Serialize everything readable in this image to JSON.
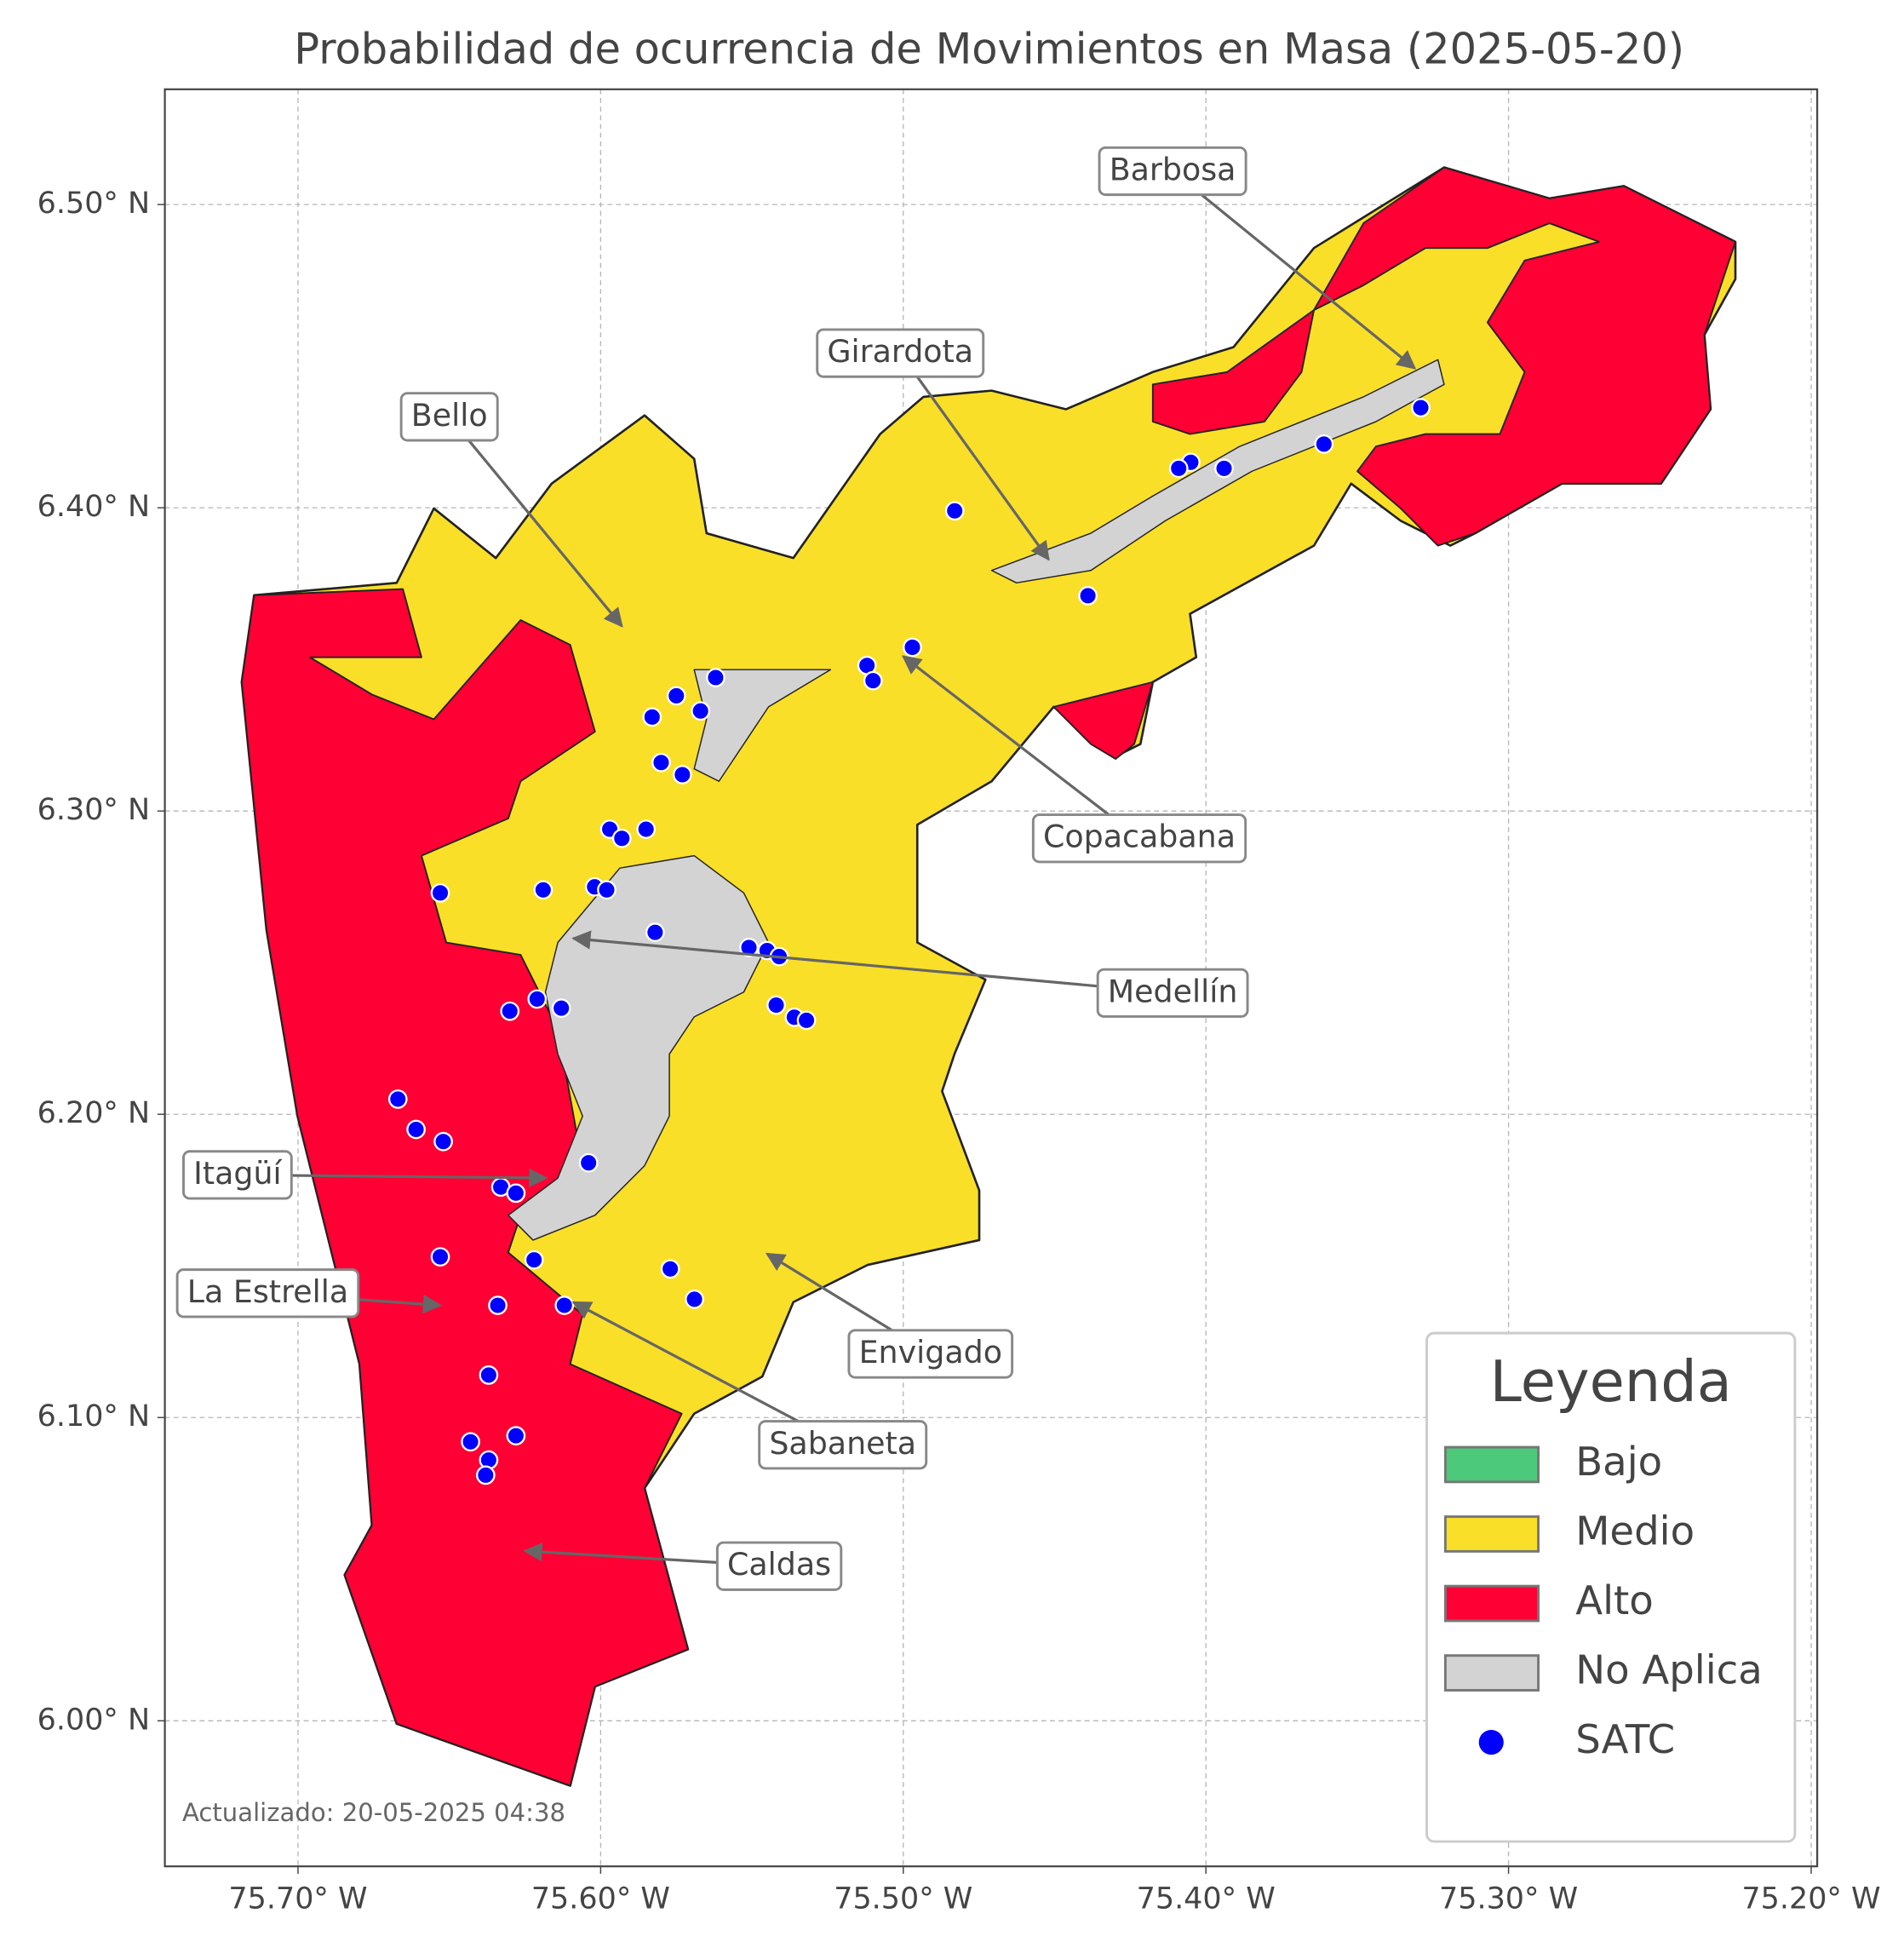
{
  "chart_data": {
    "type": "map",
    "title": "Probabilidad de ocurrencia de Movimientos en Masa (2025-05-20)",
    "note": "Actualizado: 20-05-2025 04:38",
    "xlim": [
      -75.744,
      -75.198
    ],
    "ylim": [
      5.952,
      6.538
    ],
    "xticks": [
      {
        "value": -75.7,
        "label": "75.70° W"
      },
      {
        "value": -75.6,
        "label": "75.60° W"
      },
      {
        "value": -75.5,
        "label": "75.50° W"
      },
      {
        "value": -75.4,
        "label": "75.40° W"
      },
      {
        "value": -75.3,
        "label": "75.30° W"
      },
      {
        "value": -75.2,
        "label": "75.20° W"
      }
    ],
    "yticks": [
      {
        "value": 6.0,
        "label": "6.00° N"
      },
      {
        "value": 6.1,
        "label": "6.10° N"
      },
      {
        "value": 6.2,
        "label": "6.20° N"
      },
      {
        "value": 6.3,
        "label": "6.30° N"
      },
      {
        "value": 6.4,
        "label": "6.40° N"
      },
      {
        "value": 6.5,
        "label": "6.50° N"
      }
    ],
    "grid": true,
    "legend": {
      "title": "Leyenda",
      "loc": "lower right",
      "items": [
        {
          "name": "Bajo",
          "color": "#4cc97a"
        },
        {
          "name": "Medio",
          "color": "#f9df28"
        },
        {
          "name": "Alto",
          "color": "#fe0034"
        },
        {
          "name": "No Aplica",
          "color": "#d3d3d3"
        }
      ]
    },
    "series": [
      {
        "name": "SATC",
        "color": "#0000ff",
        "x": [
          -75.329,
          -75.361,
          -75.394,
          -75.405,
          -75.409,
          -75.483,
          -75.439,
          -75.497,
          -75.512,
          -75.51,
          -75.562,
          -75.575,
          -75.567,
          -75.583,
          -75.58,
          -75.573,
          -75.597,
          -75.593,
          -75.585,
          -75.619,
          -75.602,
          -75.598,
          -75.653,
          -75.582,
          -75.551,
          -75.545,
          -75.541,
          -75.542,
          -75.536,
          -75.532,
          -75.621,
          -75.613,
          -75.63,
          -75.667,
          -75.661,
          -75.652,
          -75.604,
          -75.633,
          -75.628,
          -75.622,
          -75.653,
          -75.577,
          -75.569,
          -75.612,
          -75.634,
          -75.637,
          -75.643,
          -75.628,
          -75.637,
          -75.638
        ],
        "y": [
          6.433,
          6.421,
          6.413,
          6.415,
          6.413,
          6.399,
          6.371,
          6.354,
          6.348,
          6.343,
          6.344,
          6.338,
          6.333,
          6.331,
          6.316,
          6.312,
          6.294,
          6.291,
          6.294,
          6.274,
          6.275,
          6.274,
          6.273,
          6.26,
          6.255,
          6.254,
          6.252,
          6.236,
          6.232,
          6.231,
          6.238,
          6.235,
          6.234,
          6.205,
          6.195,
          6.191,
          6.184,
          6.176,
          6.174,
          6.152,
          6.153,
          6.149,
          6.139,
          6.137,
          6.137,
          6.114,
          6.092,
          6.094,
          6.086,
          6.081
        ]
      }
    ],
    "annotations": [
      {
        "text": "Barbosa",
        "xy": [
          -75.331,
          6.446
        ],
        "xytext": [
          -75.411,
          6.511
        ]
      },
      {
        "text": "Girardota",
        "xy": [
          -75.452,
          6.383
        ],
        "xytext": [
          -75.501,
          6.451
        ]
      },
      {
        "text": "Bello",
        "xy": [
          -75.593,
          6.361
        ],
        "xytext": [
          -75.65,
          6.43
        ]
      },
      {
        "text": "Copacabana",
        "xy": [
          -75.5,
          6.351
        ],
        "xytext": [
          -75.422,
          6.291
        ]
      },
      {
        "text": "Medellín",
        "xy": [
          -75.609,
          6.258
        ],
        "xytext": [
          -75.411,
          6.24
        ]
      },
      {
        "text": "Itagüí",
        "xy": [
          -75.618,
          6.179
        ],
        "xytext": [
          -75.72,
          6.18
        ]
      },
      {
        "text": "La Estrella",
        "xy": [
          -75.653,
          6.137
        ],
        "xytext": [
          -75.71,
          6.141
        ]
      },
      {
        "text": "Envigado",
        "xy": [
          -75.545,
          6.154
        ],
        "xytext": [
          -75.491,
          6.121
        ]
      },
      {
        "text": "Sabaneta",
        "xy": [
          -75.609,
          6.138
        ],
        "xytext": [
          -75.52,
          6.091
        ]
      },
      {
        "text": "Caldas",
        "xy": [
          -75.625,
          6.056
        ],
        "xytext": [
          -75.541,
          6.051
        ]
      }
    ]
  }
}
